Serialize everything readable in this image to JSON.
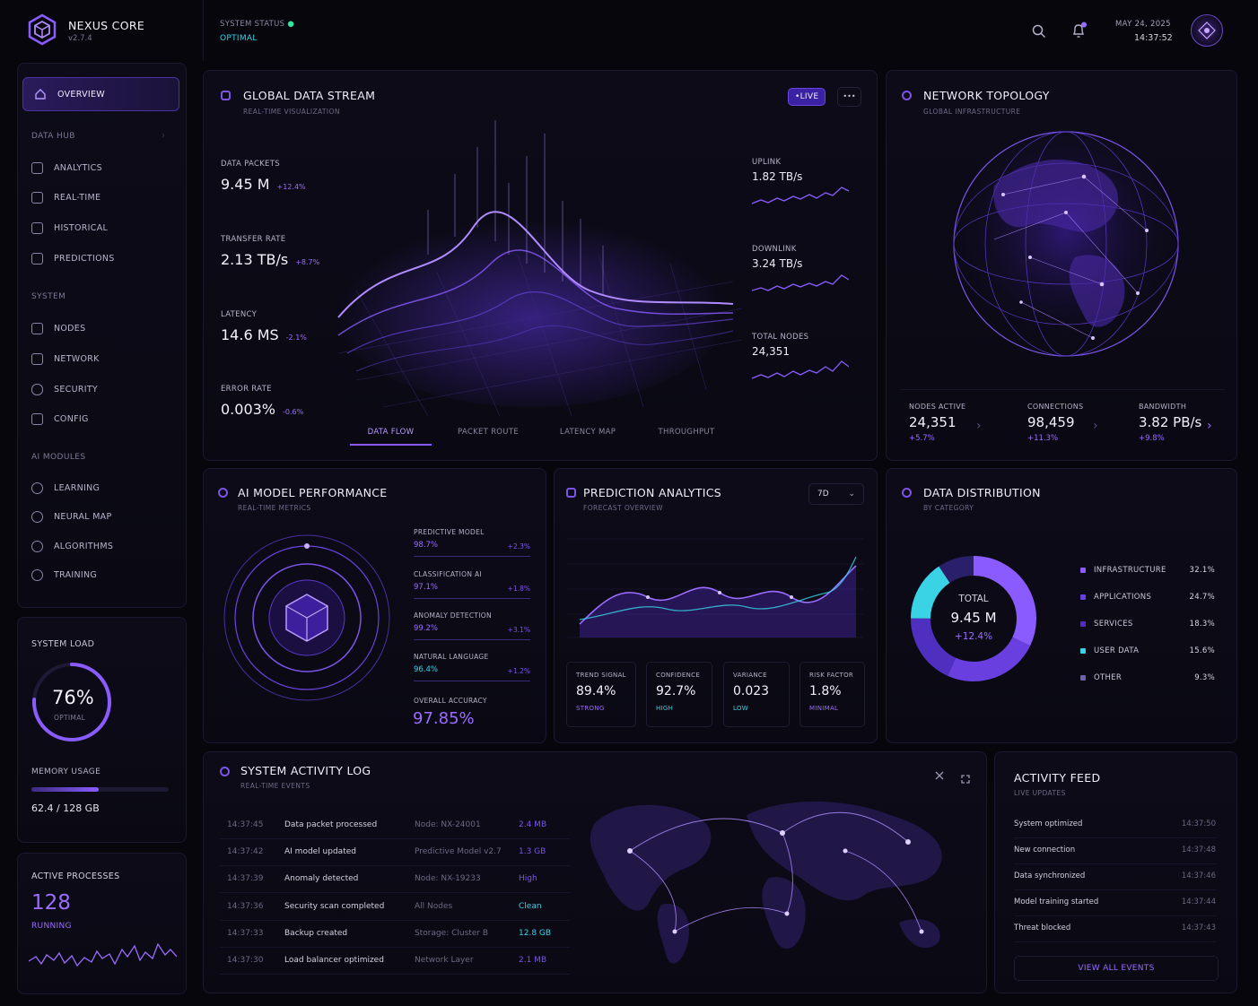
{
  "app": {
    "name": "NEXUS CORE",
    "version": "v2.7.4",
    "status_label": "SYSTEM STATUS",
    "status_value": "OPTIMAL",
    "date": "MAY 24, 2025",
    "time": "14:37:52"
  },
  "sidebar": {
    "overview": "OVERVIEW",
    "sections": [
      {
        "title": "DATA HUB",
        "items": [
          "ANALYTICS",
          "REAL-TIME",
          "HISTORICAL",
          "PREDICTIONS"
        ]
      },
      {
        "title": "SYSTEM",
        "items": [
          "NODES",
          "NETWORK",
          "SECURITY",
          "CONFIG"
        ]
      },
      {
        "title": "AI MODULES",
        "items": [
          "LEARNING",
          "NEURAL MAP",
          "ALGORITHMS",
          "TRAINING"
        ]
      }
    ],
    "system_load": {
      "label": "SYSTEM LOAD",
      "value": "76%",
      "percent": 76,
      "status": "OPTIMAL",
      "memory_label": "MEMORY USAGE",
      "memory_value": "62.4 / 128 GB",
      "memory_fraction": 0.4875
    },
    "processes": {
      "label": "ACTIVE PROCESSES",
      "value": "128",
      "status": "RUNNING"
    }
  },
  "stream": {
    "title": "GLOBAL DATA STREAM",
    "subtitle": "REAL-TIME VISUALIZATION",
    "live": "•LIVE",
    "more": "•••",
    "metrics": [
      {
        "label": "DATA PACKETS",
        "value": "9.45 M",
        "delta": "+12.4%"
      },
      {
        "label": "TRANSFER RATE",
        "value": "2.13 TB/s",
        "delta": "+8.7%"
      },
      {
        "label": "LATENCY",
        "value": "14.6 MS",
        "delta": "-2.1%"
      },
      {
        "label": "ERROR RATE",
        "value": "0.003%",
        "delta": "-0.6%"
      }
    ],
    "side": [
      {
        "label": "UPLINK",
        "value": "1.82 TB/s"
      },
      {
        "label": "DOWNLINK",
        "value": "3.24 TB/s"
      },
      {
        "label": "TOTAL NODES",
        "value": "24,351"
      }
    ],
    "tabs": [
      "DATA FLOW",
      "PACKET ROUTE",
      "LATENCY MAP",
      "THROUGHPUT"
    ]
  },
  "topology": {
    "title": "NETWORK TOPOLOGY",
    "subtitle": "GLOBAL INFRASTRUCTURE",
    "stats": [
      {
        "label": "NODES ACTIVE",
        "value": "24,351",
        "delta": "+5.7%"
      },
      {
        "label": "CONNECTIONS",
        "value": "98,459",
        "delta": "+11.3%"
      },
      {
        "label": "BANDWIDTH",
        "value": "3.82 PB/s",
        "delta": "+9.8%"
      }
    ]
  },
  "ai": {
    "title": "AI MODEL PERFORMANCE",
    "subtitle": "REAL-TIME METRICS",
    "models": [
      {
        "name": "PREDICTIVE MODEL",
        "value": "98.7%",
        "delta": "+2.3%"
      },
      {
        "name": "CLASSIFICATION AI",
        "value": "97.1%",
        "delta": "+1.8%"
      },
      {
        "name": "ANOMALY DETECTION",
        "value": "99.2%",
        "delta": "+3.1%"
      },
      {
        "name": "NATURAL LANGUAGE",
        "value": "96.4%",
        "delta": "+1.2%"
      }
    ],
    "overall_label": "OVERALL ACCURACY",
    "overall_value": "97.85%"
  },
  "prediction": {
    "title": "PREDICTION ANALYTICS",
    "subtitle": "FORECAST OVERVIEW",
    "range": "7D",
    "cards": [
      {
        "label": "TREND SIGNAL",
        "value": "89.4%",
        "status": "STRONG"
      },
      {
        "label": "CONFIDENCE",
        "value": "92.7%",
        "status": "HIGH"
      },
      {
        "label": "VARIANCE",
        "value": "0.023",
        "status": "LOW"
      },
      {
        "label": "RISK FACTOR",
        "value": "1.8%",
        "status": "MINIMAL"
      }
    ]
  },
  "distribution": {
    "title": "DATA DISTRIBUTION",
    "subtitle": "BY CATEGORY",
    "total_label": "TOTAL",
    "total_value": "9.45 M",
    "total_delta": "+12.4%",
    "items": [
      {
        "name": "INFRASTRUCTURE",
        "value": "32.1%",
        "pct": 32.1
      },
      {
        "name": "APPLICATIONS",
        "value": "24.7%",
        "pct": 24.7
      },
      {
        "name": "SERVICES",
        "value": "18.3%",
        "pct": 18.3
      },
      {
        "name": "USER DATA",
        "value": "15.6%",
        "pct": 15.6
      },
      {
        "name": "OTHER",
        "value": "9.3%",
        "pct": 9.3
      }
    ]
  },
  "log": {
    "title": "SYSTEM ACTIVITY LOG",
    "subtitle": "REAL-TIME EVENTS",
    "rows": [
      {
        "time": "14:37:45",
        "event": "Data packet processed",
        "source": "Node: NX-24001",
        "value": "2.4 MB"
      },
      {
        "time": "14:37:42",
        "event": "AI model updated",
        "source": "Predictive Model v2.7",
        "value": "1.3 GB"
      },
      {
        "time": "14:37:39",
        "event": "Anomaly detected",
        "source": "Node: NX-19233",
        "value": "High"
      },
      {
        "time": "14:37:36",
        "event": "Security scan completed",
        "source": "All Nodes",
        "value": "Clean"
      },
      {
        "time": "14:37:33",
        "event": "Backup created",
        "source": "Storage: Cluster B",
        "value": "12.8 GB"
      },
      {
        "time": "14:37:30",
        "event": "Load balancer optimized",
        "source": "Network Layer",
        "value": "2.1 MB"
      }
    ]
  },
  "feed": {
    "title": "ACTIVITY FEED",
    "subtitle": "LIVE UPDATES",
    "button": "VIEW ALL EVENTS",
    "items": [
      {
        "event": "System optimized",
        "time": "14:37:50"
      },
      {
        "event": "New connection",
        "time": "14:37:48"
      },
      {
        "event": "Data synchronized",
        "time": "14:37:46"
      },
      {
        "event": "Model training started",
        "time": "14:37:44"
      },
      {
        "event": "Threat blocked",
        "time": "14:37:43"
      }
    ]
  },
  "colors": {
    "accent": "#9b6dff",
    "cyan": "#3ad3e6",
    "bg": "#07060d"
  }
}
